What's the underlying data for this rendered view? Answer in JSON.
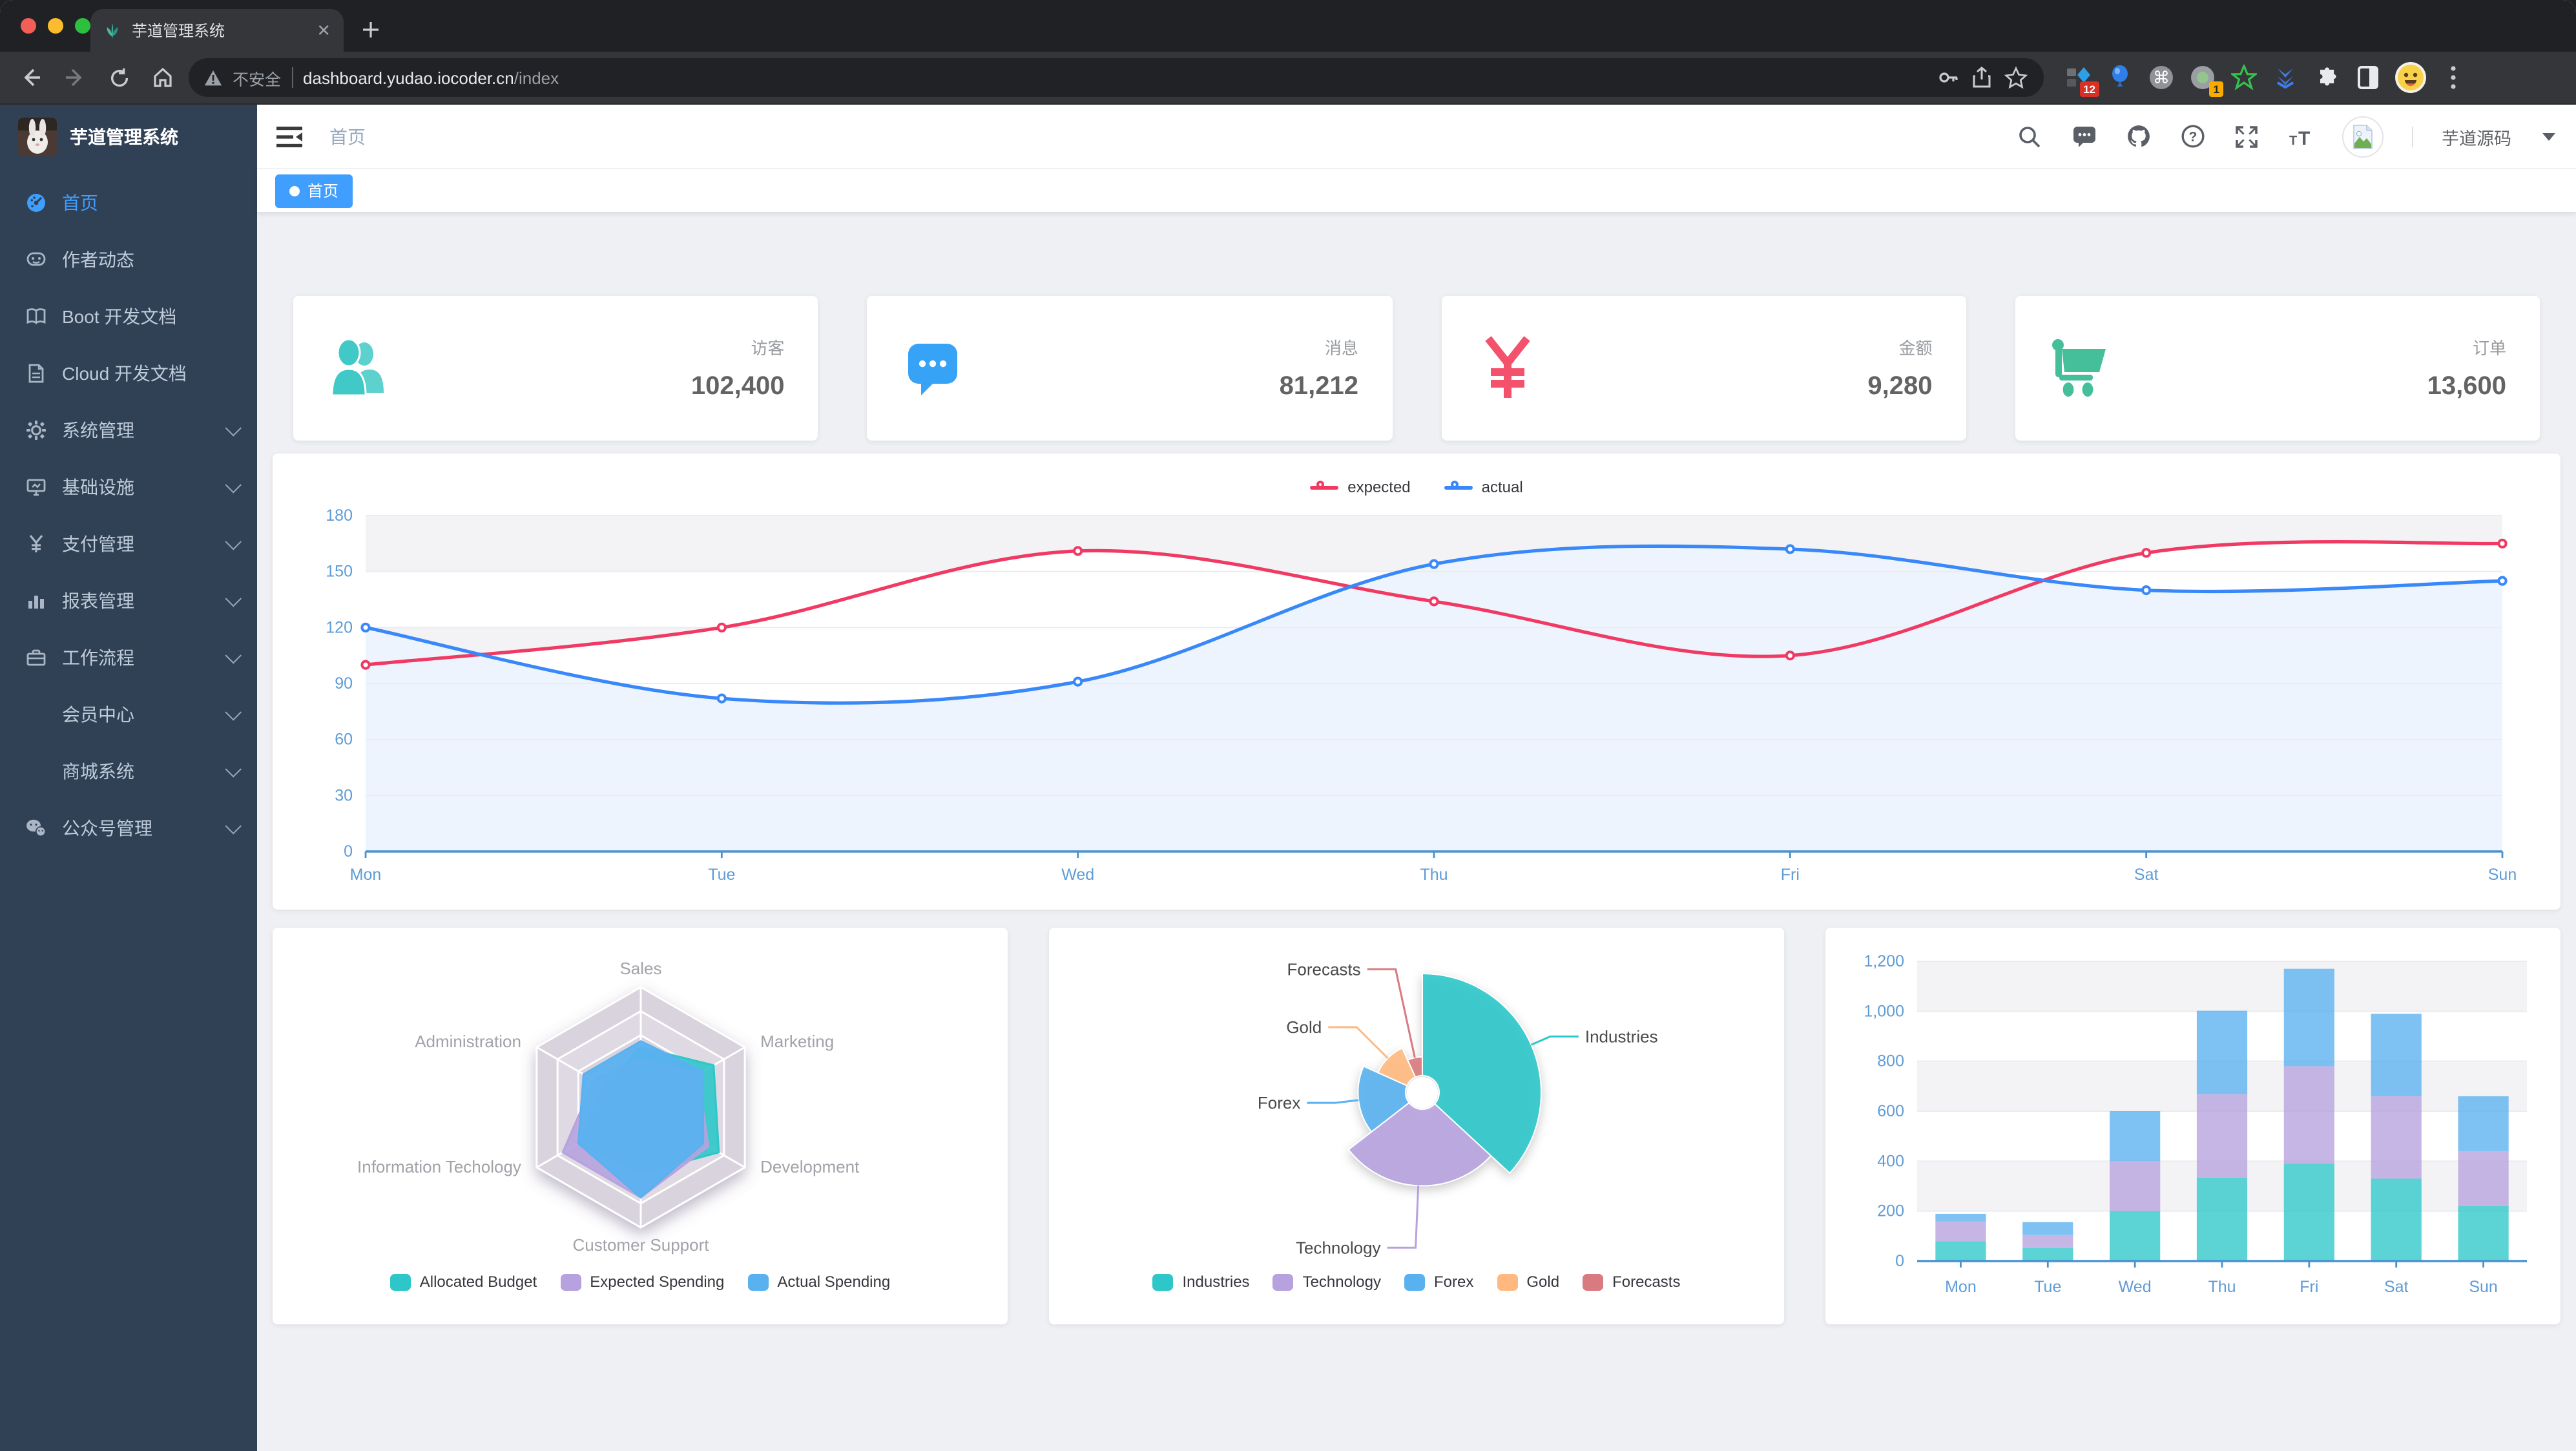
{
  "browser": {
    "tab_title": "芋道管理系统",
    "address": {
      "security_label": "不安全",
      "url_host": "dashboard.yudao.iocoder.cn",
      "url_path": "/index"
    },
    "extensions": {
      "badge_1": "12",
      "badge_2": "1"
    }
  },
  "sidebar": {
    "logo_title": "芋道管理系统",
    "items": [
      {
        "label": "首页",
        "icon": "dashboard-icon",
        "active": true,
        "has_children": false
      },
      {
        "label": "作者动态",
        "icon": "people-icon",
        "active": false,
        "has_children": false
      },
      {
        "label": "Boot 开发文档",
        "icon": "book-icon",
        "active": false,
        "has_children": false
      },
      {
        "label": "Cloud 开发文档",
        "icon": "document-icon",
        "active": false,
        "has_children": false
      },
      {
        "label": "系统管理",
        "icon": "gear-icon",
        "active": false,
        "has_children": true
      },
      {
        "label": "基础设施",
        "icon": "monitor-icon",
        "active": false,
        "has_children": true
      },
      {
        "label": "支付管理",
        "icon": "yen-icon",
        "active": false,
        "has_children": true
      },
      {
        "label": "报表管理",
        "icon": "bar-chart-icon",
        "active": false,
        "has_children": true
      },
      {
        "label": "工作流程",
        "icon": "briefcase-icon",
        "active": false,
        "has_children": true
      },
      {
        "label": "会员中心",
        "icon": null,
        "active": false,
        "has_children": true
      },
      {
        "label": "商城系统",
        "icon": null,
        "active": false,
        "has_children": true
      },
      {
        "label": "公众号管理",
        "icon": "wechat-icon",
        "active": false,
        "has_children": true
      }
    ]
  },
  "navbar": {
    "breadcrumb": "首页",
    "username": "芋道源码"
  },
  "tags_view": {
    "tags": [
      {
        "label": "首页",
        "active": true
      }
    ]
  },
  "stats": [
    {
      "label": "访客",
      "value": "102,400",
      "icon": "peoples-icon",
      "color": "#40c9c6"
    },
    {
      "label": "消息",
      "value": "81,212",
      "icon": "message-icon",
      "color": "#36a3f7"
    },
    {
      "label": "金额",
      "value": "9,280",
      "icon": "money-icon",
      "color": "#f4516c"
    },
    {
      "label": "订单",
      "value": "13,600",
      "icon": "shopping-icon",
      "color": "#44bf9a"
    }
  ],
  "chart_data": [
    {
      "id": "weekly-activity-line",
      "type": "line",
      "x": [
        "Mon",
        "Tue",
        "Wed",
        "Thu",
        "Fri",
        "Sat",
        "Sun"
      ],
      "series": [
        {
          "name": "expected",
          "color": "#f13a63",
          "area_color": "#ffffff",
          "values": [
            100,
            120,
            161,
            134,
            105,
            160,
            165
          ]
        },
        {
          "name": "actual",
          "color": "#3888fa",
          "area_color": "#eef4fd",
          "values": [
            120,
            82,
            91,
            154,
            162,
            140,
            145
          ]
        }
      ],
      "ylim": [
        0,
        180
      ],
      "ytick_step": 30,
      "legend_position": "top",
      "grid": true
    },
    {
      "id": "budget-radar",
      "type": "radar",
      "indicators": [
        {
          "name": "Sales",
          "max": 10000
        },
        {
          "name": "Marketing",
          "max": 20000
        },
        {
          "name": "Development",
          "max": 20000
        },
        {
          "name": "Customer Support",
          "max": 20000
        },
        {
          "name": "Information Techology",
          "max": 20000
        },
        {
          "name": "Administration",
          "max": 20000
        }
      ],
      "series": [
        {
          "name": "Allocated Budget",
          "color": "#2ec7c9",
          "values": [
            5000,
            14000,
            15000,
            11000,
            12000,
            7000
          ]
        },
        {
          "name": "Expected Spending",
          "color": "#b6a2de",
          "values": [
            4000,
            11000,
            13000,
            15000,
            15000,
            9000
          ]
        },
        {
          "name": "Actual Spending",
          "color": "#5ab1ef",
          "values": [
            5500,
            12000,
            12000,
            15000,
            12000,
            11000
          ]
        }
      ],
      "legend_position": "bottom"
    },
    {
      "id": "sales-rose-pie",
      "type": "pie",
      "rose": true,
      "inner_radius": 15,
      "outer_radius": 95,
      "slices": [
        {
          "name": "Industries",
          "value": 320,
          "color": "#2ec7c9"
        },
        {
          "name": "Technology",
          "value": 240,
          "color": "#b6a2de"
        },
        {
          "name": "Forex",
          "value": 149,
          "color": "#5ab1ef"
        },
        {
          "name": "Gold",
          "value": 100,
          "color": "#ffb980"
        },
        {
          "name": "Forecasts",
          "value": 59,
          "color": "#d87a80"
        }
      ],
      "legend_position": "bottom"
    },
    {
      "id": "weekly-stacked-bar",
      "type": "bar",
      "stacked": true,
      "categories": [
        "Mon",
        "Tue",
        "Wed",
        "Thu",
        "Fri",
        "Sat",
        "Sun"
      ],
      "series": [
        {
          "color": "#2ec7c9",
          "values": [
            79,
            52,
            200,
            334,
            390,
            330,
            220
          ]
        },
        {
          "color": "#b6a2de",
          "values": [
            80,
            52,
            200,
            334,
            390,
            330,
            220
          ]
        },
        {
          "color": "#5ab1ef",
          "values": [
            30,
            52,
            200,
            334,
            390,
            330,
            220
          ]
        }
      ],
      "ylim": [
        0,
        1200
      ],
      "ytick_step": 200,
      "legend_position": "none"
    }
  ]
}
